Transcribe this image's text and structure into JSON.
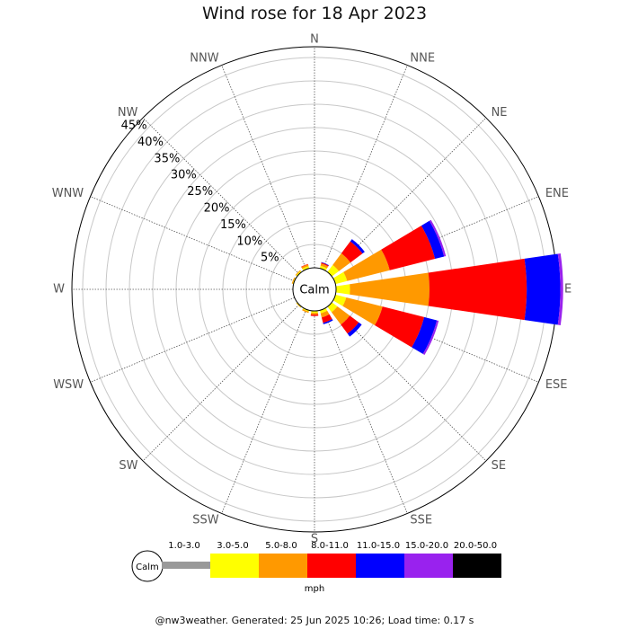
{
  "title": "Wind rose for 18 Apr 2023",
  "footer": "@nw3weather. Generated: 25 Jun 2025 10:26; Load time: 0.17 s",
  "chart_data": {
    "type": "windrose",
    "title": "Wind rose for 18 Apr 2023",
    "directions": [
      "N",
      "NNE",
      "NE",
      "ENE",
      "E",
      "ESE",
      "SE",
      "SSE",
      "S",
      "SSW",
      "SW",
      "WSW",
      "W",
      "WNW",
      "NW",
      "NNW"
    ],
    "rings_percent": [
      5,
      10,
      15,
      20,
      25,
      30,
      35,
      40,
      45
    ],
    "ring_labels": [
      "5%",
      "10%",
      "15%",
      "20%",
      "25%",
      "30%",
      "35%",
      "40%",
      "45%"
    ],
    "calm_label": "Calm",
    "unit": "mph",
    "speed_bins": [
      {
        "label": "1.0-3.0",
        "color": "#999999"
      },
      {
        "label": "3.0-5.0",
        "color": "#ffff00"
      },
      {
        "label": "5.0-8.0",
        "color": "#ff9900"
      },
      {
        "label": "8.0-11.0",
        "color": "#ff0000"
      },
      {
        "label": "11.0-15.0",
        "color": "#0000ff"
      },
      {
        "label": "15.0-20.0",
        "color": "#9922ee"
      },
      {
        "label": "20.0-50.0",
        "color": "#000000"
      }
    ],
    "cumulative_percent": {
      "N": [
        0,
        0,
        0,
        0,
        0,
        0,
        0
      ],
      "NNE": [
        0,
        0.6,
        1.1,
        1.3,
        1.4,
        1.4,
        1.4
      ],
      "NE": [
        0,
        1.9,
        5.0,
        8.2,
        8.8,
        8.8,
        8.8
      ],
      "ENE": [
        0,
        2.6,
        12.0,
        22.0,
        24.0,
        24.4,
        24.4
      ],
      "E": [
        0,
        3.0,
        20.0,
        40.8,
        48.0,
        48.6,
        48.6
      ],
      "ESE": [
        0,
        2.4,
        10.4,
        19.6,
        22.4,
        22.8,
        22.8
      ],
      "SE": [
        0,
        1.5,
        4.8,
        7.2,
        8.0,
        8.0,
        8.0
      ],
      "SSE": [
        0,
        0.7,
        1.6,
        2.8,
        3.1,
        3.1,
        3.1
      ],
      "S": [
        0,
        0.4,
        0.8,
        1.1,
        1.1,
        1.1,
        1.1
      ],
      "SSW": [
        0,
        0.3,
        0.6,
        0.6,
        0.6,
        0.6,
        0.6
      ],
      "SW": [
        0,
        0.2,
        0.3,
        0.3,
        0.3,
        0.3,
        0.3
      ],
      "WSW": [
        0,
        0,
        0,
        0,
        0,
        0,
        0
      ],
      "W": [
        0,
        0,
        0,
        0,
        0,
        0,
        0
      ],
      "WNW": [
        0,
        0.2,
        0.4,
        0.4,
        0.4,
        0.4,
        0.4
      ],
      "NW": [
        0,
        0.3,
        0.5,
        0.5,
        0.5,
        0.5,
        0.5
      ],
      "NNW": [
        0,
        0.5,
        0.9,
        1.0,
        1.0,
        1.0,
        1.0
      ]
    }
  }
}
